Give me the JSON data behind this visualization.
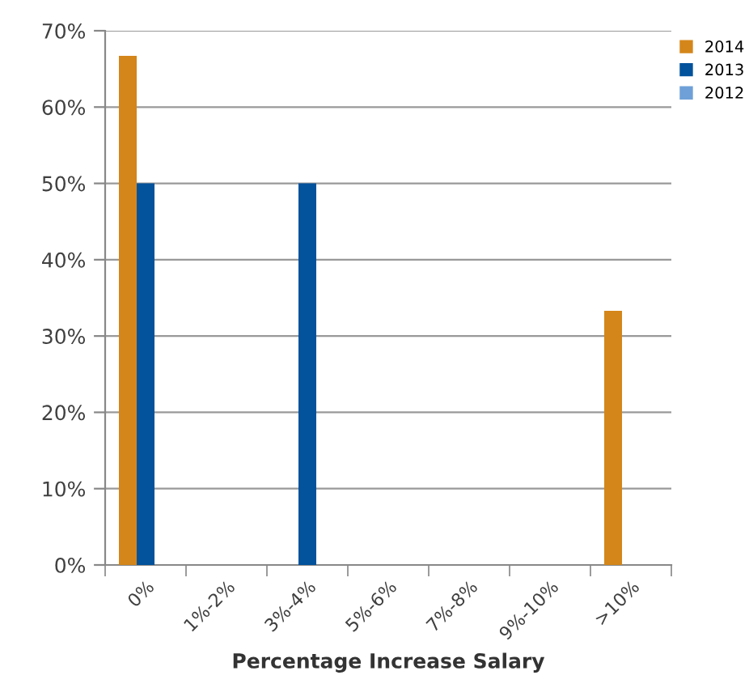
{
  "chart_data": {
    "type": "bar",
    "xlabel": "Percentage Increase Salary",
    "categories": [
      "0%",
      "1%-2%",
      "3%-4%",
      "5%-6%",
      "7%-8%",
      "9%-10%",
      ">10%"
    ],
    "series": [
      {
        "name": "2014",
        "color": "#d4861a",
        "values": [
          66.7,
          0,
          0,
          0,
          0,
          0,
          33.3
        ]
      },
      {
        "name": "2013",
        "color": "#02529c",
        "values": [
          50,
          0,
          50,
          0,
          0,
          0,
          0
        ]
      },
      {
        "name": "2012",
        "color": "#6fa0d8",
        "values": [
          0,
          0,
          0,
          0,
          0,
          0,
          0
        ]
      }
    ],
    "ylim": [
      0,
      70
    ],
    "yticks": [
      {
        "value": 0,
        "label": "0%"
      },
      {
        "value": 10,
        "label": "10%"
      },
      {
        "value": 20,
        "label": "20%"
      },
      {
        "value": 30,
        "label": "30%"
      },
      {
        "value": 40,
        "label": "40%"
      },
      {
        "value": 50,
        "label": "50%"
      },
      {
        "value": 60,
        "label": "60%"
      },
      {
        "value": 70,
        "label": "70%"
      }
    ],
    "grid": "y",
    "legend": "top right"
  }
}
